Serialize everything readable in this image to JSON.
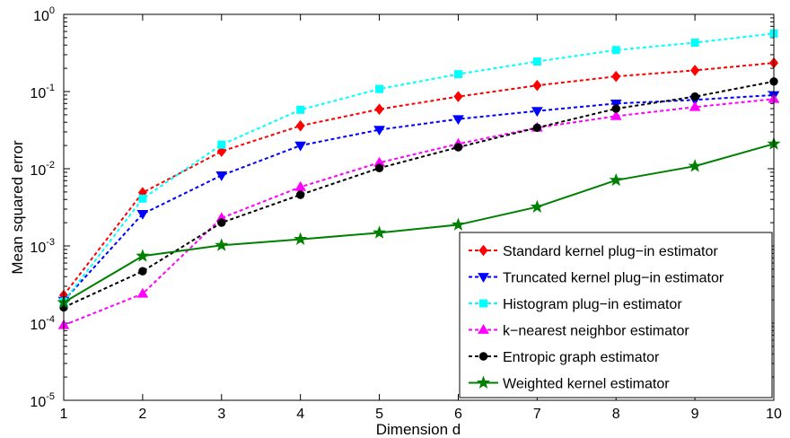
{
  "chart_data": {
    "type": "line",
    "title": "",
    "xlabel": "Dimension d",
    "ylabel": "Mean squared error",
    "yscale": "log",
    "xlim": [
      1,
      10
    ],
    "ylim": [
      1e-05,
      1
    ],
    "x_ticks": [
      "1",
      "2",
      "3",
      "4",
      "5",
      "6",
      "7",
      "8",
      "9",
      "10"
    ],
    "y_ticks": [
      {
        "base": "10",
        "exp": "-5",
        "value": 1e-05
      },
      {
        "base": "10",
        "exp": "-4",
        "value": 0.0001
      },
      {
        "base": "10",
        "exp": "-3",
        "value": 0.001
      },
      {
        "base": "10",
        "exp": "-2",
        "value": 0.01
      },
      {
        "base": "10",
        "exp": "-1",
        "value": 0.1
      },
      {
        "base": "10",
        "exp": "0",
        "value": 1
      }
    ],
    "grid": false,
    "legend_position": "bottom-right",
    "x": [
      1,
      2,
      3,
      4,
      5,
      6,
      7,
      8,
      9,
      10
    ],
    "series": [
      {
        "name": "Standard kernel plug−in estimator",
        "color": "#ff0000",
        "marker": "diamond",
        "dash": "dashed",
        "values": [
          0.00023,
          0.0049,
          0.0168,
          0.036,
          0.059,
          0.086,
          0.12,
          0.157,
          0.188,
          0.235
        ]
      },
      {
        "name": "Truncated kernel plug−in estimator",
        "color": "#0000ff",
        "marker": "triangle-down",
        "dash": "dashed",
        "values": [
          0.000195,
          0.0026,
          0.0082,
          0.02,
          0.032,
          0.044,
          0.056,
          0.07,
          0.078,
          0.09
        ]
      },
      {
        "name": "Histogram plug−in estimator",
        "color": "#00ffff",
        "marker": "square",
        "dash": "dashed",
        "values": [
          0.00019,
          0.0041,
          0.0205,
          0.058,
          0.108,
          0.168,
          0.245,
          0.345,
          0.43,
          0.565
        ]
      },
      {
        "name": "k−nearest neighbor estimator",
        "color": "#ff00ff",
        "marker": "triangle-up",
        "dash": "dashed",
        "values": [
          9.4e-05,
          0.00024,
          0.0023,
          0.0058,
          0.012,
          0.021,
          0.034,
          0.048,
          0.063,
          0.08
        ]
      },
      {
        "name": "Entropic graph estimator",
        "color": "#000000",
        "marker": "circle",
        "dash": "dashed",
        "values": [
          0.00016,
          0.00047,
          0.002,
          0.0046,
          0.0102,
          0.019,
          0.034,
          0.06,
          0.086,
          0.135
        ]
      },
      {
        "name": "Weighted kernel estimator",
        "color": "#008000",
        "marker": "star",
        "dash": "solid",
        "values": [
          0.000185,
          0.00074,
          0.00102,
          0.00122,
          0.00148,
          0.00188,
          0.0032,
          0.0071,
          0.0108,
          0.021
        ]
      }
    ]
  }
}
